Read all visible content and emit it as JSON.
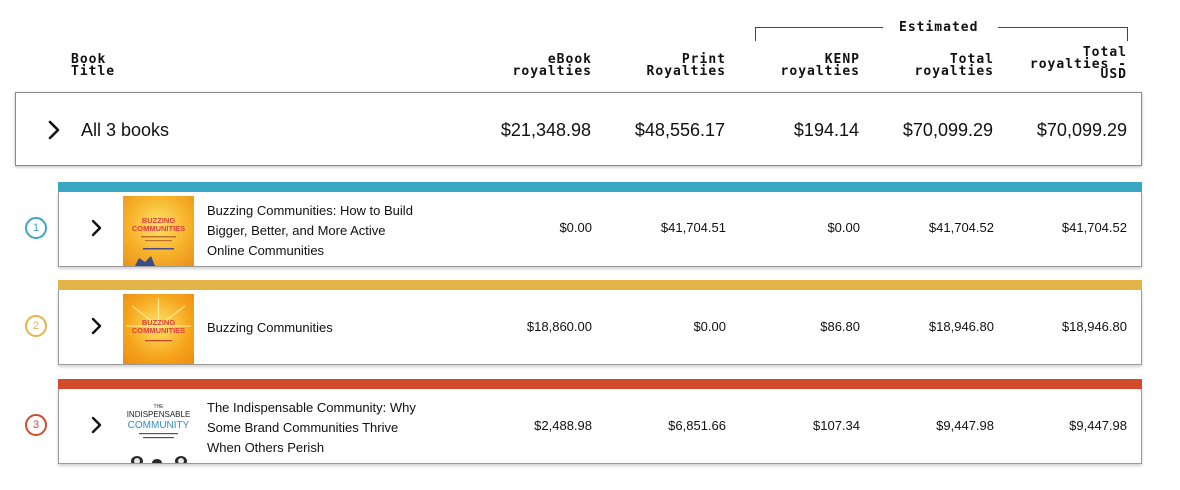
{
  "header": {
    "title_line1": "Book",
    "title_line2": "Title",
    "estimated": "Estimated",
    "ebook_line1": "eBook",
    "ebook_line2": "royalties",
    "print_line1": "Print",
    "print_line2": "Royalties",
    "kenp_line1": "KENP",
    "kenp_line2": "royalties",
    "total_line1": "Total",
    "total_line2": "royalties",
    "usd_line1": "Total",
    "usd_line2": "royalties -",
    "usd_line3": "USD"
  },
  "summary": {
    "label": "All 3 books",
    "ebook": "$21,348.98",
    "print": "$48,556.17",
    "kenp": "$194.14",
    "total": "$70,099.29",
    "usd": "$70,099.29"
  },
  "books": [
    {
      "index": "1",
      "color": "#39a7c4",
      "title_lines": [
        "Buzzing Communities: How to Build",
        "Bigger, Better, and More Active",
        "Online Communities"
      ],
      "cover_text": [
        "BUZZING",
        "COMMUNITIES"
      ],
      "ebook": "$0.00",
      "print": "$41,704.51",
      "kenp": "$0.00",
      "total": "$41,704.52",
      "usd": "$41,704.52"
    },
    {
      "index": "2",
      "color": "#e2b548",
      "title_lines": [
        "Buzzing Communities"
      ],
      "cover_text": [
        "BUZZING",
        "COMMUNITIES"
      ],
      "ebook": "$18,860.00",
      "print": "$0.00",
      "kenp": "$86.80",
      "total": "$18,946.80",
      "usd": "$18,946.80"
    },
    {
      "index": "3",
      "color": "#d34b2c",
      "title_lines": [
        "The Indispensable Community: Why",
        "Some Brand Communities Thrive",
        "When Others Perish"
      ],
      "cover_text": [
        "THE",
        "INDISPENSABLE",
        "COMMUNITY"
      ],
      "ebook": "$2,488.98",
      "print": "$6,851.66",
      "kenp": "$107.34",
      "total": "$9,447.98",
      "usd": "$9,447.98"
    }
  ]
}
